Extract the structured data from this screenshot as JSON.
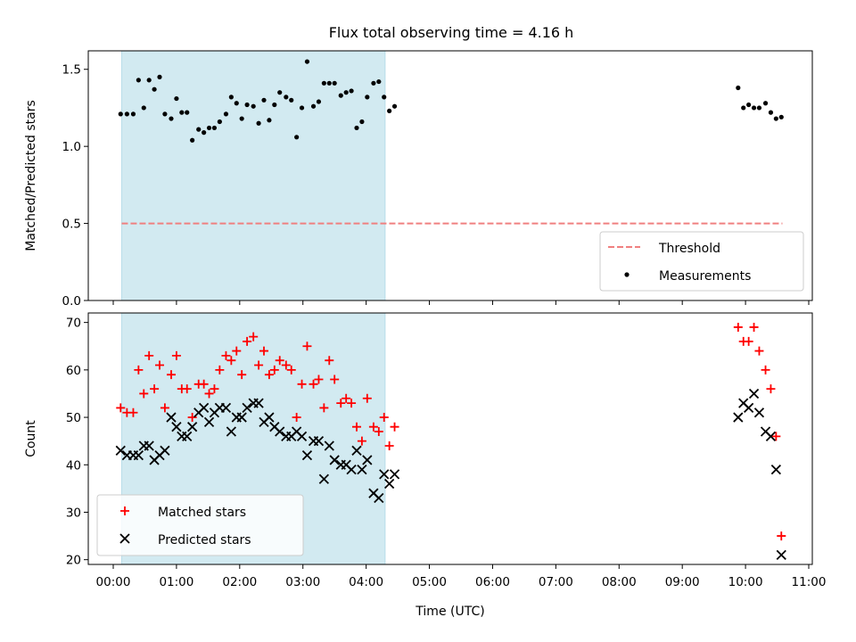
{
  "figure": {
    "title": "Flux total observing time = 4.16 h"
  },
  "chart_data": [
    {
      "type": "scatter",
      "ylabel": "Matched/Predicted stars",
      "ylim": [
        0,
        1.62
      ],
      "xlim": [
        "00:00",
        "11:00"
      ],
      "yticks": [
        "0.0",
        "0.5",
        "1.0",
        "1.5"
      ],
      "shaded_interval": [
        "00:08",
        "04:18"
      ],
      "shaded_color": "#add8e6",
      "grid": false,
      "legend_position": "lower right",
      "threshold": {
        "name": "Threshold",
        "value": 0.5,
        "x_range": [
          "00:08",
          "10:35"
        ],
        "color": "#f08080",
        "style": "dashed"
      },
      "series": [
        {
          "name": "Measurements",
          "marker": "dot",
          "color": "#000000",
          "points": [
            [
              "00:07",
              1.21
            ],
            [
              "00:13",
              1.21
            ],
            [
              "00:19",
              1.21
            ],
            [
              "00:24",
              1.43
            ],
            [
              "00:29",
              1.25
            ],
            [
              "00:34",
              1.43
            ],
            [
              "00:39",
              1.37
            ],
            [
              "00:44",
              1.45
            ],
            [
              "00:49",
              1.21
            ],
            [
              "00:55",
              1.18
            ],
            [
              "01:00",
              1.31
            ],
            [
              "01:05",
              1.22
            ],
            [
              "01:10",
              1.22
            ],
            [
              "01:15",
              1.04
            ],
            [
              "01:21",
              1.11
            ],
            [
              "01:26",
              1.09
            ],
            [
              "01:31",
              1.12
            ],
            [
              "01:36",
              1.12
            ],
            [
              "01:41",
              1.16
            ],
            [
              "01:47",
              1.21
            ],
            [
              "01:52",
              1.32
            ],
            [
              "01:57",
              1.28
            ],
            [
              "02:02",
              1.18
            ],
            [
              "02:07",
              1.27
            ],
            [
              "02:13",
              1.26
            ],
            [
              "02:18",
              1.15
            ],
            [
              "02:23",
              1.3
            ],
            [
              "02:28",
              1.17
            ],
            [
              "02:33",
              1.27
            ],
            [
              "02:38",
              1.35
            ],
            [
              "02:44",
              1.32
            ],
            [
              "02:49",
              1.3
            ],
            [
              "02:54",
              1.06
            ],
            [
              "02:59",
              1.25
            ],
            [
              "03:04",
              1.55
            ],
            [
              "03:10",
              1.26
            ],
            [
              "03:15",
              1.29
            ],
            [
              "03:20",
              1.41
            ],
            [
              "03:25",
              1.41
            ],
            [
              "03:30",
              1.41
            ],
            [
              "03:36",
              1.33
            ],
            [
              "03:41",
              1.35
            ],
            [
              "03:46",
              1.36
            ],
            [
              "03:51",
              1.12
            ],
            [
              "03:56",
              1.16
            ],
            [
              "04:01",
              1.32
            ],
            [
              "04:07",
              1.41
            ],
            [
              "04:12",
              1.42
            ],
            [
              "04:17",
              1.32
            ],
            [
              "04:22",
              1.23
            ],
            [
              "04:27",
              1.26
            ],
            [
              "09:53",
              1.38
            ],
            [
              "09:58",
              1.25
            ],
            [
              "10:03",
              1.27
            ],
            [
              "10:08",
              1.25
            ],
            [
              "10:13",
              1.25
            ],
            [
              "10:19",
              1.28
            ],
            [
              "10:24",
              1.22
            ],
            [
              "10:29",
              1.18
            ],
            [
              "10:34",
              1.19
            ]
          ]
        }
      ]
    },
    {
      "type": "scatter",
      "xlabel": "Time (UTC)",
      "ylabel": "Count",
      "ylim": [
        19,
        72
      ],
      "xlim": [
        "00:00",
        "11:00"
      ],
      "xticks": [
        "00:00",
        "01:00",
        "02:00",
        "03:00",
        "04:00",
        "05:00",
        "06:00",
        "07:00",
        "08:00",
        "09:00",
        "10:00",
        "11:00"
      ],
      "yticks": [
        "20",
        "30",
        "40",
        "50",
        "60",
        "70"
      ],
      "shaded_interval": [
        "00:08",
        "04:18"
      ],
      "shaded_color": "#add8e6",
      "grid": false,
      "legend_position": "lower left",
      "series": [
        {
          "name": "Matched stars",
          "marker": "plus",
          "color": "#ff0000",
          "points": [
            [
              "00:07",
              52
            ],
            [
              "00:13",
              51
            ],
            [
              "00:19",
              51
            ],
            [
              "00:24",
              60
            ],
            [
              "00:29",
              55
            ],
            [
              "00:34",
              63
            ],
            [
              "00:39",
              56
            ],
            [
              "00:44",
              61
            ],
            [
              "00:49",
              52
            ],
            [
              "00:55",
              59
            ],
            [
              "01:00",
              63
            ],
            [
              "01:05",
              56
            ],
            [
              "01:10",
              56
            ],
            [
              "01:15",
              50
            ],
            [
              "01:21",
              57
            ],
            [
              "01:26",
              57
            ],
            [
              "01:31",
              55
            ],
            [
              "01:36",
              56
            ],
            [
              "01:41",
              60
            ],
            [
              "01:47",
              63
            ],
            [
              "01:52",
              62
            ],
            [
              "01:57",
              64
            ],
            [
              "02:02",
              59
            ],
            [
              "02:07",
              66
            ],
            [
              "02:13",
              67
            ],
            [
              "02:18",
              61
            ],
            [
              "02:23",
              64
            ],
            [
              "02:28",
              59
            ],
            [
              "02:33",
              60
            ],
            [
              "02:38",
              62
            ],
            [
              "02:44",
              61
            ],
            [
              "02:49",
              60
            ],
            [
              "02:54",
              50
            ],
            [
              "02:59",
              57
            ],
            [
              "03:04",
              65
            ],
            [
              "03:10",
              57
            ],
            [
              "03:15",
              58
            ],
            [
              "03:20",
              52
            ],
            [
              "03:25",
              62
            ],
            [
              "03:30",
              58
            ],
            [
              "03:36",
              53
            ],
            [
              "03:41",
              54
            ],
            [
              "03:46",
              53
            ],
            [
              "03:51",
              48
            ],
            [
              "03:56",
              45
            ],
            [
              "04:01",
              54
            ],
            [
              "04:07",
              48
            ],
            [
              "04:12",
              47
            ],
            [
              "04:17",
              50
            ],
            [
              "04:22",
              44
            ],
            [
              "04:27",
              48
            ],
            [
              "09:53",
              69
            ],
            [
              "09:58",
              66
            ],
            [
              "10:03",
              66
            ],
            [
              "10:08",
              69
            ],
            [
              "10:13",
              64
            ],
            [
              "10:19",
              60
            ],
            [
              "10:24",
              56
            ],
            [
              "10:29",
              46
            ],
            [
              "10:34",
              25
            ]
          ]
        },
        {
          "name": "Predicted stars",
          "marker": "x",
          "color": "#000000",
          "points": [
            [
              "00:07",
              43
            ],
            [
              "00:13",
              42
            ],
            [
              "00:19",
              42
            ],
            [
              "00:24",
              42
            ],
            [
              "00:29",
              44
            ],
            [
              "00:34",
              44
            ],
            [
              "00:39",
              41
            ],
            [
              "00:44",
              42
            ],
            [
              "00:49",
              43
            ],
            [
              "00:55",
              50
            ],
            [
              "01:00",
              48
            ],
            [
              "01:05",
              46
            ],
            [
              "01:10",
              46
            ],
            [
              "01:15",
              48
            ],
            [
              "01:21",
              51
            ],
            [
              "01:26",
              52
            ],
            [
              "01:31",
              49
            ],
            [
              "01:36",
              51
            ],
            [
              "01:41",
              52
            ],
            [
              "01:47",
              52
            ],
            [
              "01:52",
              47
            ],
            [
              "01:57",
              50
            ],
            [
              "02:02",
              50
            ],
            [
              "02:07",
              52
            ],
            [
              "02:13",
              53
            ],
            [
              "02:18",
              53
            ],
            [
              "02:23",
              49
            ],
            [
              "02:28",
              50
            ],
            [
              "02:33",
              48
            ],
            [
              "02:38",
              47
            ],
            [
              "02:44",
              46
            ],
            [
              "02:49",
              46
            ],
            [
              "02:54",
              47
            ],
            [
              "02:59",
              46
            ],
            [
              "03:04",
              42
            ],
            [
              "03:10",
              45
            ],
            [
              "03:15",
              45
            ],
            [
              "03:20",
              37
            ],
            [
              "03:25",
              44
            ],
            [
              "03:30",
              41
            ],
            [
              "03:36",
              40
            ],
            [
              "03:41",
              40
            ],
            [
              "03:46",
              39
            ],
            [
              "03:51",
              43
            ],
            [
              "03:56",
              39
            ],
            [
              "04:01",
              41
            ],
            [
              "04:07",
              34
            ],
            [
              "04:12",
              33
            ],
            [
              "04:17",
              38
            ],
            [
              "04:22",
              36
            ],
            [
              "04:27",
              38
            ],
            [
              "09:53",
              50
            ],
            [
              "09:58",
              53
            ],
            [
              "10:03",
              52
            ],
            [
              "10:08",
              55
            ],
            [
              "10:13",
              51
            ],
            [
              "10:19",
              47
            ],
            [
              "10:24",
              46
            ],
            [
              "10:29",
              39
            ],
            [
              "10:34",
              21
            ]
          ]
        }
      ]
    }
  ]
}
